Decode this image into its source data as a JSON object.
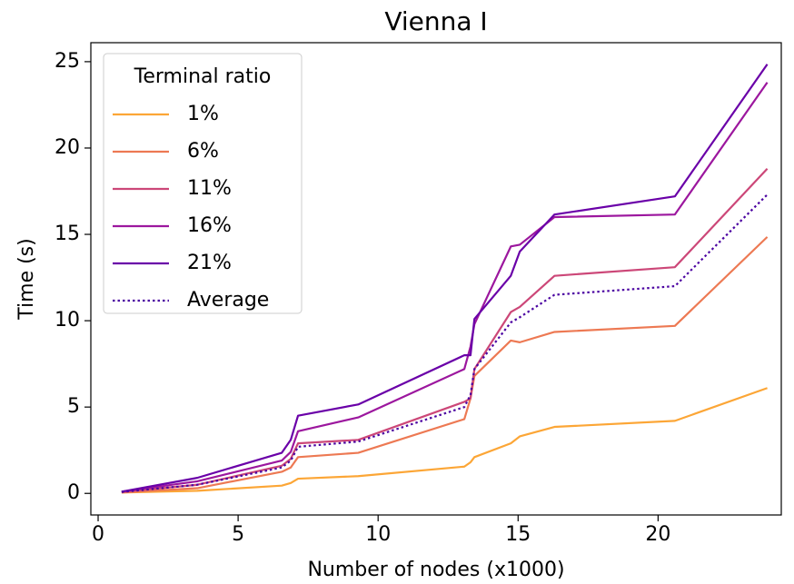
{
  "chart_data": {
    "type": "line",
    "title": "Vienna I",
    "xlabel": "Number of nodes (x1000)",
    "ylabel": "Time (s)",
    "x": [
      0.84,
      3.54,
      6.56,
      6.88,
      7.14,
      9.29,
      13.08,
      13.3,
      13.44,
      14.74,
      15.06,
      16.3,
      20.6,
      23.9
    ],
    "legend_title": "Terminal ratio",
    "legend": "upper left",
    "series": [
      {
        "name": "1%",
        "color": "#fca636",
        "style": "solid",
        "values": [
          0.05,
          0.15,
          0.45,
          0.6,
          0.85,
          1.0,
          1.55,
          1.8,
          2.1,
          2.9,
          3.3,
          3.85,
          4.2,
          6.1
        ]
      },
      {
        "name": "6%",
        "color": "#ed7953",
        "style": "solid",
        "values": [
          0.05,
          0.3,
          1.25,
          1.5,
          2.1,
          2.35,
          4.3,
          5.5,
          6.8,
          8.85,
          8.75,
          9.35,
          9.7,
          14.85
        ]
      },
      {
        "name": "11%",
        "color": "#cc4778",
        "style": "solid",
        "values": [
          0.08,
          0.5,
          1.6,
          2.0,
          2.9,
          3.1,
          5.3,
          5.5,
          7.2,
          10.5,
          10.8,
          12.6,
          13.1,
          18.8
        ]
      },
      {
        "name": "16%",
        "color": "#9c179e",
        "style": "solid",
        "values": [
          0.1,
          0.7,
          1.9,
          2.4,
          3.6,
          4.4,
          7.2,
          8.5,
          9.8,
          14.3,
          14.4,
          16.0,
          16.15,
          23.8
        ]
      },
      {
        "name": "21%",
        "color": "#6a00a8",
        "style": "solid",
        "values": [
          0.1,
          0.9,
          2.35,
          3.1,
          4.5,
          5.15,
          8.0,
          8.0,
          10.1,
          12.6,
          14.0,
          16.15,
          17.2,
          24.85
        ]
      },
      {
        "name": "Average",
        "color": "#4b03a1",
        "style": "dotted",
        "values": [
          0.08,
          0.5,
          1.5,
          1.9,
          2.7,
          3.0,
          5.0,
          5.7,
          7.2,
          9.9,
          10.2,
          11.5,
          12.0,
          17.3
        ]
      }
    ],
    "xlim": [
      -0.26,
      24.4
    ],
    "xticks": [
      0,
      5,
      10,
      15,
      20
    ],
    "ylim": [
      -1.25,
      26.1
    ],
    "yticks": [
      0,
      5,
      10,
      15,
      20,
      25
    ],
    "grid": false
  }
}
